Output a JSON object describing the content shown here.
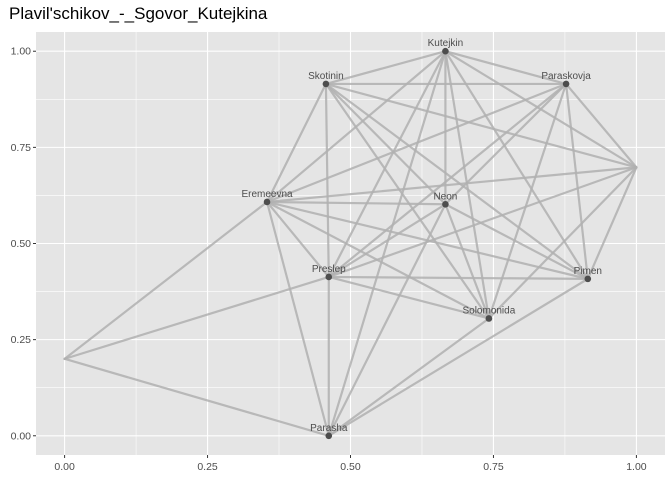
{
  "chart_data": {
    "type": "network",
    "title": "Plavil'schikov_-_Sgovor_Kutejkina",
    "xlabel": "",
    "ylabel": "",
    "xlim": [
      -0.05,
      1.05
    ],
    "ylim": [
      -0.05,
      1.05
    ],
    "x_ticks": [
      0.0,
      0.25,
      0.5,
      0.75,
      1.0
    ],
    "x_tick_labels": [
      "0.00",
      "0.25",
      "0.50",
      "0.75",
      "1.00"
    ],
    "y_ticks": [
      0.0,
      0.25,
      0.5,
      0.75,
      1.0
    ],
    "y_tick_labels": [
      "0.00",
      "0.25",
      "0.50",
      "0.75",
      "1.00"
    ],
    "grid": true,
    "colors": {
      "panel_background": "#e5e5e5",
      "grid": "#ffffff",
      "edge": "#b0b0b0",
      "node": "#4d4d4d",
      "label": "#4d4d4d"
    },
    "nodes": [
      {
        "id": "kutejkin",
        "label": "Kutejkin",
        "x": 0.666,
        "y": 1.0
      },
      {
        "id": "skotinin",
        "label": "Skotinin",
        "x": 0.457,
        "y": 0.915
      },
      {
        "id": "paraskovja",
        "label": "Paraskovja",
        "x": 0.877,
        "y": 0.915
      },
      {
        "id": "unlabeled_a",
        "label": "",
        "x": 1.0,
        "y": 0.698
      },
      {
        "id": "eremeevna",
        "label": "Eremeevna",
        "x": 0.354,
        "y": 0.608
      },
      {
        "id": "neon",
        "label": "Neon",
        "x": 0.666,
        "y": 0.602
      },
      {
        "id": "preslep",
        "label": "Preslep",
        "x": 0.462,
        "y": 0.413
      },
      {
        "id": "pimen",
        "label": "Pimen",
        "x": 0.915,
        "y": 0.408
      },
      {
        "id": "solomonida",
        "label": "Solomonida",
        "x": 0.742,
        "y": 0.305
      },
      {
        "id": "unlabeled_b",
        "label": "",
        "x": 0.0,
        "y": 0.2
      },
      {
        "id": "parasha",
        "label": "Parasha",
        "x": 0.462,
        "y": 0.0
      }
    ],
    "edges": [
      [
        "kutejkin",
        "skotinin"
      ],
      [
        "kutejkin",
        "paraskovja"
      ],
      [
        "kutejkin",
        "eremeevna"
      ],
      [
        "kutejkin",
        "neon"
      ],
      [
        "kutejkin",
        "preslep"
      ],
      [
        "kutejkin",
        "pimen"
      ],
      [
        "kutejkin",
        "solomonida"
      ],
      [
        "kutejkin",
        "unlabeled_a"
      ],
      [
        "kutejkin",
        "parasha"
      ],
      [
        "skotinin",
        "paraskovja"
      ],
      [
        "skotinin",
        "eremeevna"
      ],
      [
        "skotinin",
        "neon"
      ],
      [
        "skotinin",
        "preslep"
      ],
      [
        "skotinin",
        "pimen"
      ],
      [
        "skotinin",
        "solomonida"
      ],
      [
        "skotinin",
        "unlabeled_a"
      ],
      [
        "paraskovja",
        "eremeevna"
      ],
      [
        "paraskovja",
        "neon"
      ],
      [
        "paraskovja",
        "preslep"
      ],
      [
        "paraskovja",
        "pimen"
      ],
      [
        "paraskovja",
        "solomonida"
      ],
      [
        "paraskovja",
        "unlabeled_a"
      ],
      [
        "eremeevna",
        "neon"
      ],
      [
        "eremeevna",
        "preslep"
      ],
      [
        "eremeevna",
        "pimen"
      ],
      [
        "eremeevna",
        "solomonida"
      ],
      [
        "eremeevna",
        "unlabeled_a"
      ],
      [
        "eremeevna",
        "parasha"
      ],
      [
        "eremeevna",
        "unlabeled_b"
      ],
      [
        "neon",
        "preslep"
      ],
      [
        "neon",
        "pimen"
      ],
      [
        "neon",
        "solomonida"
      ],
      [
        "neon",
        "parasha"
      ],
      [
        "preslep",
        "pimen"
      ],
      [
        "preslep",
        "solomonida"
      ],
      [
        "preslep",
        "unlabeled_a"
      ],
      [
        "preslep",
        "unlabeled_b"
      ],
      [
        "preslep",
        "parasha"
      ],
      [
        "pimen",
        "unlabeled_a"
      ],
      [
        "pimen",
        "parasha"
      ],
      [
        "solomonida",
        "unlabeled_a"
      ],
      [
        "solomonida",
        "parasha"
      ],
      [
        "unlabeled_b",
        "parasha"
      ]
    ]
  }
}
